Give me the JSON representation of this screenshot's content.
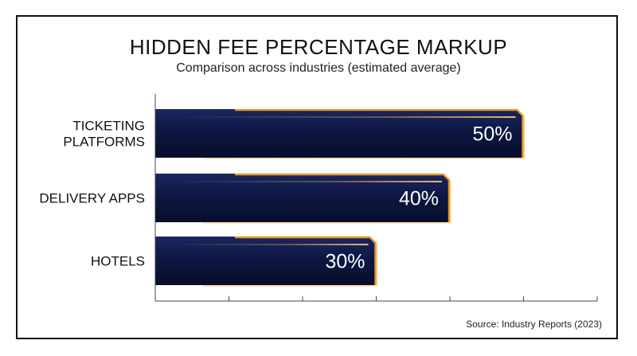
{
  "chart_data": {
    "type": "bar",
    "orientation": "horizontal",
    "title": "HIDDEN FEE PERCENTAGE MARKUP",
    "subtitle": "Comparison across industries (estimated average)",
    "categories": [
      [
        "TICKETING",
        "PLATFORMS"
      ],
      [
        "DELIVERY APPS"
      ],
      [
        "HOTELS"
      ]
    ],
    "values": [
      50,
      40,
      30
    ],
    "value_labels": [
      "50%",
      "40%",
      "30%"
    ],
    "xlim": [
      0,
      60
    ],
    "grid": false,
    "colors": {
      "bar": "#0d1640",
      "bar_edge": "#f5a623",
      "glow": "#ffb347"
    },
    "source": "Source: Industry Reports (2023)"
  }
}
